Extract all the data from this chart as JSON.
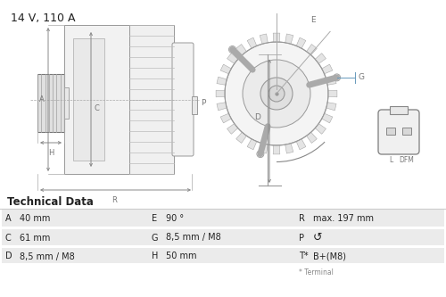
{
  "title": "14 V, 110 A",
  "title_fontsize": 9,
  "bg_color": "#ffffff",
  "table_header": "Technical Data",
  "table_header_fontsize": 8.5,
  "rows": [
    [
      "A",
      "40 mm",
      "E",
      "90 °",
      "R",
      "max. 197 mm"
    ],
    [
      "C",
      "61 mm",
      "G",
      "8,5 mm / M8",
      "P",
      "↺"
    ],
    [
      "D",
      "8,5 mm / M8",
      "H",
      "50 mm",
      "T*",
      "B+(M8)"
    ]
  ],
  "footnote": "* Terminal",
  "gray_light": "#ebebeb",
  "gray_mid": "#d0d0d0",
  "text_color": "#222222",
  "label_color": "#777777",
  "line_color": "#999999",
  "dim_color": "#aaaaaa"
}
